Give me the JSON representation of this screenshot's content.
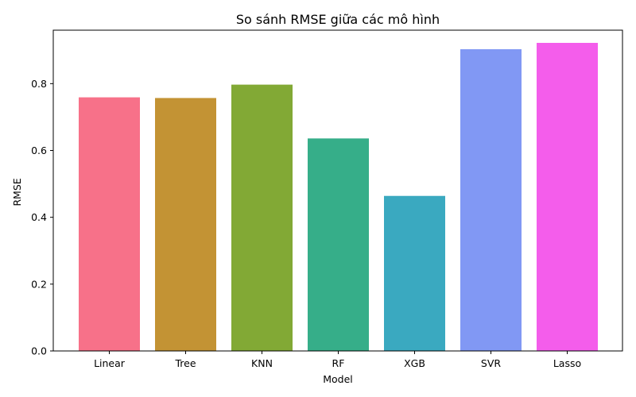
{
  "chart_data": {
    "type": "bar",
    "title": "So sánh RMSE giữa các mô hình",
    "xlabel": "Model",
    "ylabel": "RMSE",
    "categories": [
      "Linear",
      "Tree",
      "KNN",
      "RF",
      "XGB",
      "SVR",
      "Lasso"
    ],
    "values": [
      0.759,
      0.757,
      0.797,
      0.636,
      0.464,
      0.903,
      0.922
    ],
    "colors": [
      "#f77189",
      "#c39334",
      "#82a935",
      "#36ae89",
      "#3aa9c0",
      "#8198f4",
      "#f45deb"
    ],
    "ylim": [
      0,
      0.96
    ],
    "yticks": [
      "0.0",
      "0.2",
      "0.4",
      "0.6",
      "0.8"
    ],
    "grid": false
  }
}
